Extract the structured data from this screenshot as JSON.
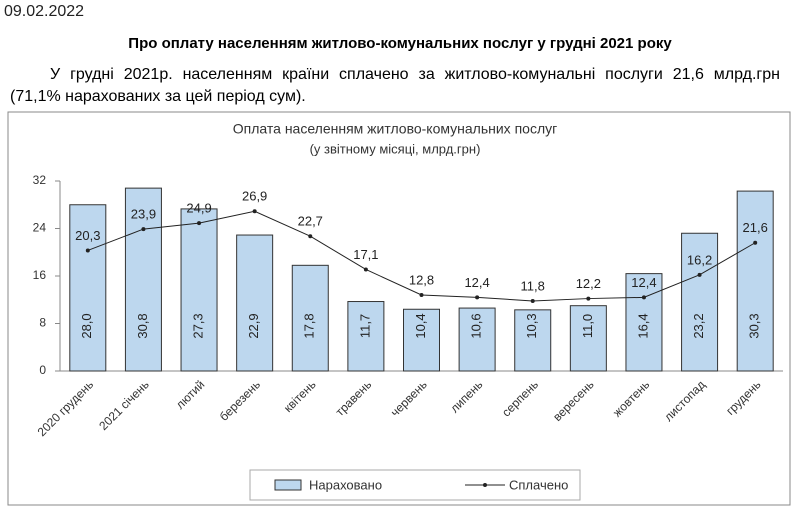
{
  "date": "09.02.2022",
  "heading": "Про оплату населенням житлово-комунальних послуг у грудні 2021 року",
  "paragraph": "У грудні 2021р. населенням країни сплачено за житлово-комунальні послуги 21,6 млрд.грн (71,1% нарахованих за цей період сум).",
  "chart_data": {
    "type": "bar",
    "title": "Оплата населенням житлово-комунальних послуг",
    "subtitle": "(у звітному місяці, млрд.грн)",
    "categories": [
      "2020 грудень",
      "2021 січень",
      "лютий",
      "березень",
      "квітень",
      "травень",
      "червень",
      "липень",
      "серпень",
      "вересень",
      "жовтень",
      "листопад",
      "грудень"
    ],
    "series": [
      {
        "name": "Нараховано",
        "type": "bar",
        "color": "#bdd7ee",
        "values": [
          28.0,
          30.8,
          27.3,
          22.9,
          17.8,
          11.7,
          10.4,
          10.6,
          10.3,
          11.0,
          16.4,
          23.2,
          30.3
        ],
        "value_labels": [
          "28,0",
          "30,8",
          "27,3",
          "22,9",
          "17,8",
          "11,7",
          "10,4",
          "10,6",
          "10,3",
          "11,0",
          "16,4",
          "23,2",
          "30,3"
        ]
      },
      {
        "name": "Сплачено",
        "type": "line",
        "color": "#222222",
        "values": [
          20.3,
          23.9,
          24.9,
          26.9,
          22.7,
          17.1,
          12.8,
          12.4,
          11.8,
          12.2,
          12.4,
          16.2,
          21.6
        ],
        "value_labels": [
          "20,3",
          "23,9",
          "24,9",
          "26,9",
          "22,7",
          "17,1",
          "12,8",
          "12,4",
          "11,8",
          "12,2",
          "12,4",
          "16,2",
          "21,6"
        ]
      }
    ],
    "ylim": [
      0,
      32
    ],
    "yticks": [
      0,
      8,
      16,
      24,
      32
    ],
    "legend": "bottom"
  }
}
